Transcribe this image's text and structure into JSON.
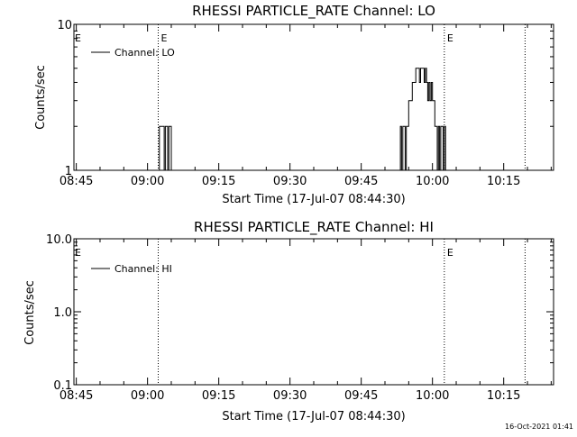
{
  "timestamp": "16-Oct-2021 01:41",
  "chart_data": [
    {
      "type": "line",
      "title": "RHESSI PARTICLE_RATE Channel: LO",
      "xlabel": "Start Time (17-Jul-07 08:44:30)",
      "ylabel": "Counts/sec",
      "xticks": [
        "08:45",
        "09:00",
        "09:15",
        "09:30",
        "09:45",
        "10:00",
        "10:15"
      ],
      "xlim": [
        "08:44:30",
        "10:25:30"
      ],
      "yscale": "log",
      "ylim": [
        1,
        10
      ],
      "yticks": [
        "1",
        "10"
      ],
      "legend_position": "top-left",
      "event_markers": [
        {
          "time": "09:02:15",
          "label": "E"
        },
        {
          "time": "10:02:30",
          "label": "E"
        },
        {
          "time": "10:19:30",
          "label": ""
        }
      ],
      "series": [
        {
          "name": "Channel: LO",
          "x": [
            "09:02:15",
            "09:02:30",
            "09:02:45",
            "09:03:00",
            "09:03:15",
            "09:03:30",
            "09:03:45",
            "09:04:00",
            "09:04:15",
            "09:04:30",
            "09:04:45",
            "09:05:00",
            "09:05:15",
            "09:53:00",
            "09:53:15",
            "09:53:30",
            "09:53:45",
            "09:54:00",
            "09:54:15",
            "09:54:30",
            "09:54:45",
            "09:55:00",
            "09:55:15",
            "09:55:30",
            "09:55:45",
            "09:56:00",
            "09:56:15",
            "09:56:30",
            "09:56:45",
            "09:57:00",
            "09:57:15",
            "09:57:30",
            "09:57:45",
            "09:58:00",
            "09:58:15",
            "09:58:30",
            "09:58:45",
            "09:59:00",
            "09:59:15",
            "09:59:30",
            "09:59:45",
            "10:00:00",
            "10:00:15",
            "10:00:30",
            "10:00:45",
            "10:01:00",
            "10:01:15",
            "10:01:30",
            "10:01:45",
            "10:02:00",
            "10:02:15",
            "10:02:30",
            "10:02:45",
            "10:03:00"
          ],
          "values": [
            1,
            2,
            2,
            2,
            2,
            1,
            2,
            2,
            1,
            2,
            2,
            1,
            1,
            1,
            2,
            1,
            2,
            2,
            1,
            2,
            2,
            3,
            3,
            3,
            4,
            4,
            4,
            5,
            5,
            5,
            4,
            5,
            5,
            5,
            4,
            5,
            4,
            3,
            4,
            3,
            4,
            3,
            3,
            2,
            2,
            1,
            2,
            1,
            2,
            2,
            1,
            2,
            1,
            1
          ]
        }
      ]
    },
    {
      "type": "line",
      "title": "RHESSI PARTICLE_RATE Channel: HI",
      "xlabel": "Start Time (17-Jul-07 08:44:30)",
      "ylabel": "Counts/sec",
      "xticks": [
        "08:45",
        "09:00",
        "09:15",
        "09:30",
        "09:45",
        "10:00",
        "10:15"
      ],
      "xlim": [
        "08:44:30",
        "10:25:30"
      ],
      "yscale": "log",
      "ylim": [
        0.1,
        10
      ],
      "yticks": [
        "0.1",
        "1.0",
        "10.0"
      ],
      "legend_position": "top-left",
      "event_markers": [
        {
          "time": "09:02:15",
          "label": ""
        },
        {
          "time": "10:02:30",
          "label": "E"
        },
        {
          "time": "10:19:30",
          "label": ""
        }
      ],
      "series": [
        {
          "name": "Channel: HI",
          "x": [],
          "values": []
        }
      ]
    }
  ]
}
